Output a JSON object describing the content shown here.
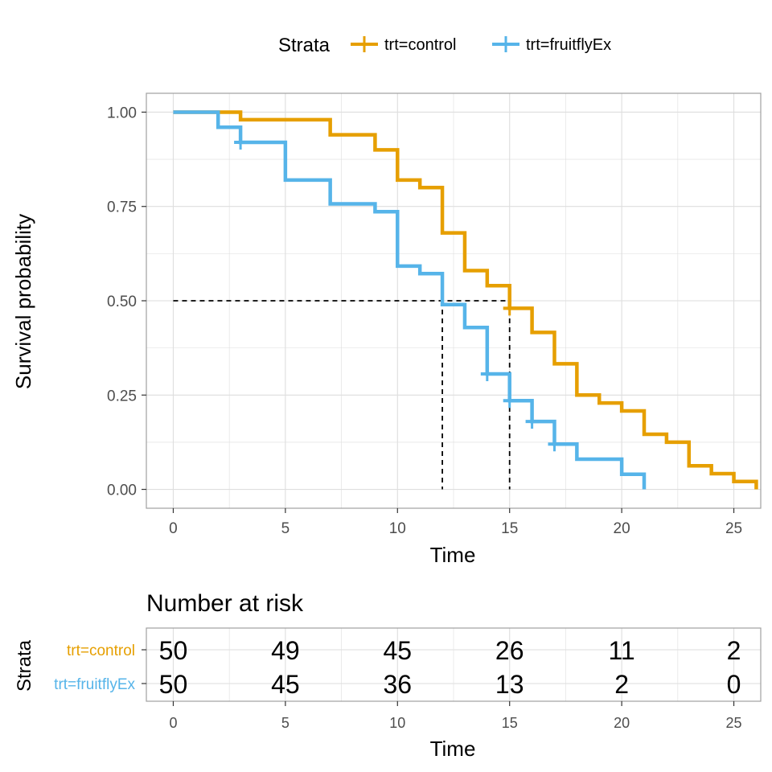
{
  "colors": {
    "control": "#E69F00",
    "fruitflyEx": "#56B4E9",
    "grid": "#DEDEDE",
    "border": "#A0A0A0",
    "median_line": "#000000"
  },
  "legend": {
    "title": "Strata",
    "items": [
      "trt=control",
      "trt=fruitflyEx"
    ]
  },
  "chart_data": [
    {
      "type": "line",
      "subtype": "kaplan-meier-step",
      "xlabel": "Time",
      "ylabel": "Survival probability",
      "xlim": [
        -1.2,
        26.2
      ],
      "ylim": [
        -0.05,
        1.05
      ],
      "x_ticks": [
        0,
        5,
        10,
        15,
        20,
        25
      ],
      "x_tick_labels": [
        "0",
        "5",
        "10",
        "15",
        "20",
        "25"
      ],
      "y_ticks": [
        0,
        0.25,
        0.5,
        0.75,
        1.0
      ],
      "y_tick_labels": [
        "0.00",
        "0.25",
        "0.50",
        "0.75",
        "1.00"
      ],
      "grid": true,
      "legend_position": "top",
      "median_survival": {
        "y": 0.5,
        "times": [
          12,
          15
        ]
      },
      "series": [
        {
          "name": "trt=control",
          "color_key": "control",
          "steps": [
            [
              0,
              1.0
            ],
            [
              2,
              1.0
            ],
            [
              3,
              0.98
            ],
            [
              7,
              0.94
            ],
            [
              9,
              0.9
            ],
            [
              10,
              0.82
            ],
            [
              11,
              0.8
            ],
            [
              12,
              0.68
            ],
            [
              13,
              0.58
            ],
            [
              14,
              0.54
            ],
            [
              15,
              0.48
            ],
            [
              16,
              0.416
            ],
            [
              17,
              0.333
            ],
            [
              18,
              0.25
            ],
            [
              19,
              0.229
            ],
            [
              20,
              0.208
            ],
            [
              21,
              0.146
            ],
            [
              22,
              0.125
            ],
            [
              23,
              0.0625
            ],
            [
              24,
              0.0417
            ],
            [
              25,
              0.0208
            ],
            [
              26,
              0.0
            ]
          ],
          "end_x": 26,
          "censor": [
            [
              15,
              0.48
            ]
          ]
        },
        {
          "name": "trt=fruitflyEx",
          "color_key": "fruitflyEx",
          "steps": [
            [
              0,
              1.0
            ],
            [
              2,
              0.96
            ],
            [
              3,
              0.92
            ],
            [
              5,
              0.82
            ],
            [
              7,
              0.757
            ],
            [
              9,
              0.736
            ],
            [
              10,
              0.592
            ],
            [
              11,
              0.572
            ],
            [
              12,
              0.49
            ],
            [
              13,
              0.429
            ],
            [
              14,
              0.306
            ],
            [
              15,
              0.235
            ],
            [
              16,
              0.18
            ],
            [
              17,
              0.12
            ],
            [
              18,
              0.08
            ],
            [
              20,
              0.04
            ],
            [
              21,
              0.0
            ]
          ],
          "end_x": 21,
          "censor": [
            [
              3,
              0.92
            ],
            [
              14,
              0.306
            ],
            [
              15,
              0.235
            ],
            [
              16,
              0.18
            ],
            [
              17,
              0.12
            ]
          ]
        }
      ]
    },
    {
      "type": "table",
      "title": "Number at risk",
      "ylabel": "Strata",
      "xlabel": "Time",
      "x_ticks": [
        0,
        5,
        10,
        15,
        20,
        25
      ],
      "x_tick_labels": [
        "0",
        "5",
        "10",
        "15",
        "20",
        "25"
      ],
      "rows": [
        {
          "label": "trt=control",
          "color_key": "control",
          "values": [
            "50",
            "49",
            "45",
            "26",
            "11",
            "2"
          ]
        },
        {
          "label": "trt=fruitflyEx",
          "color_key": "fruitflyEx",
          "values": [
            "50",
            "45",
            "36",
            "13",
            "2",
            "0"
          ]
        }
      ]
    }
  ]
}
